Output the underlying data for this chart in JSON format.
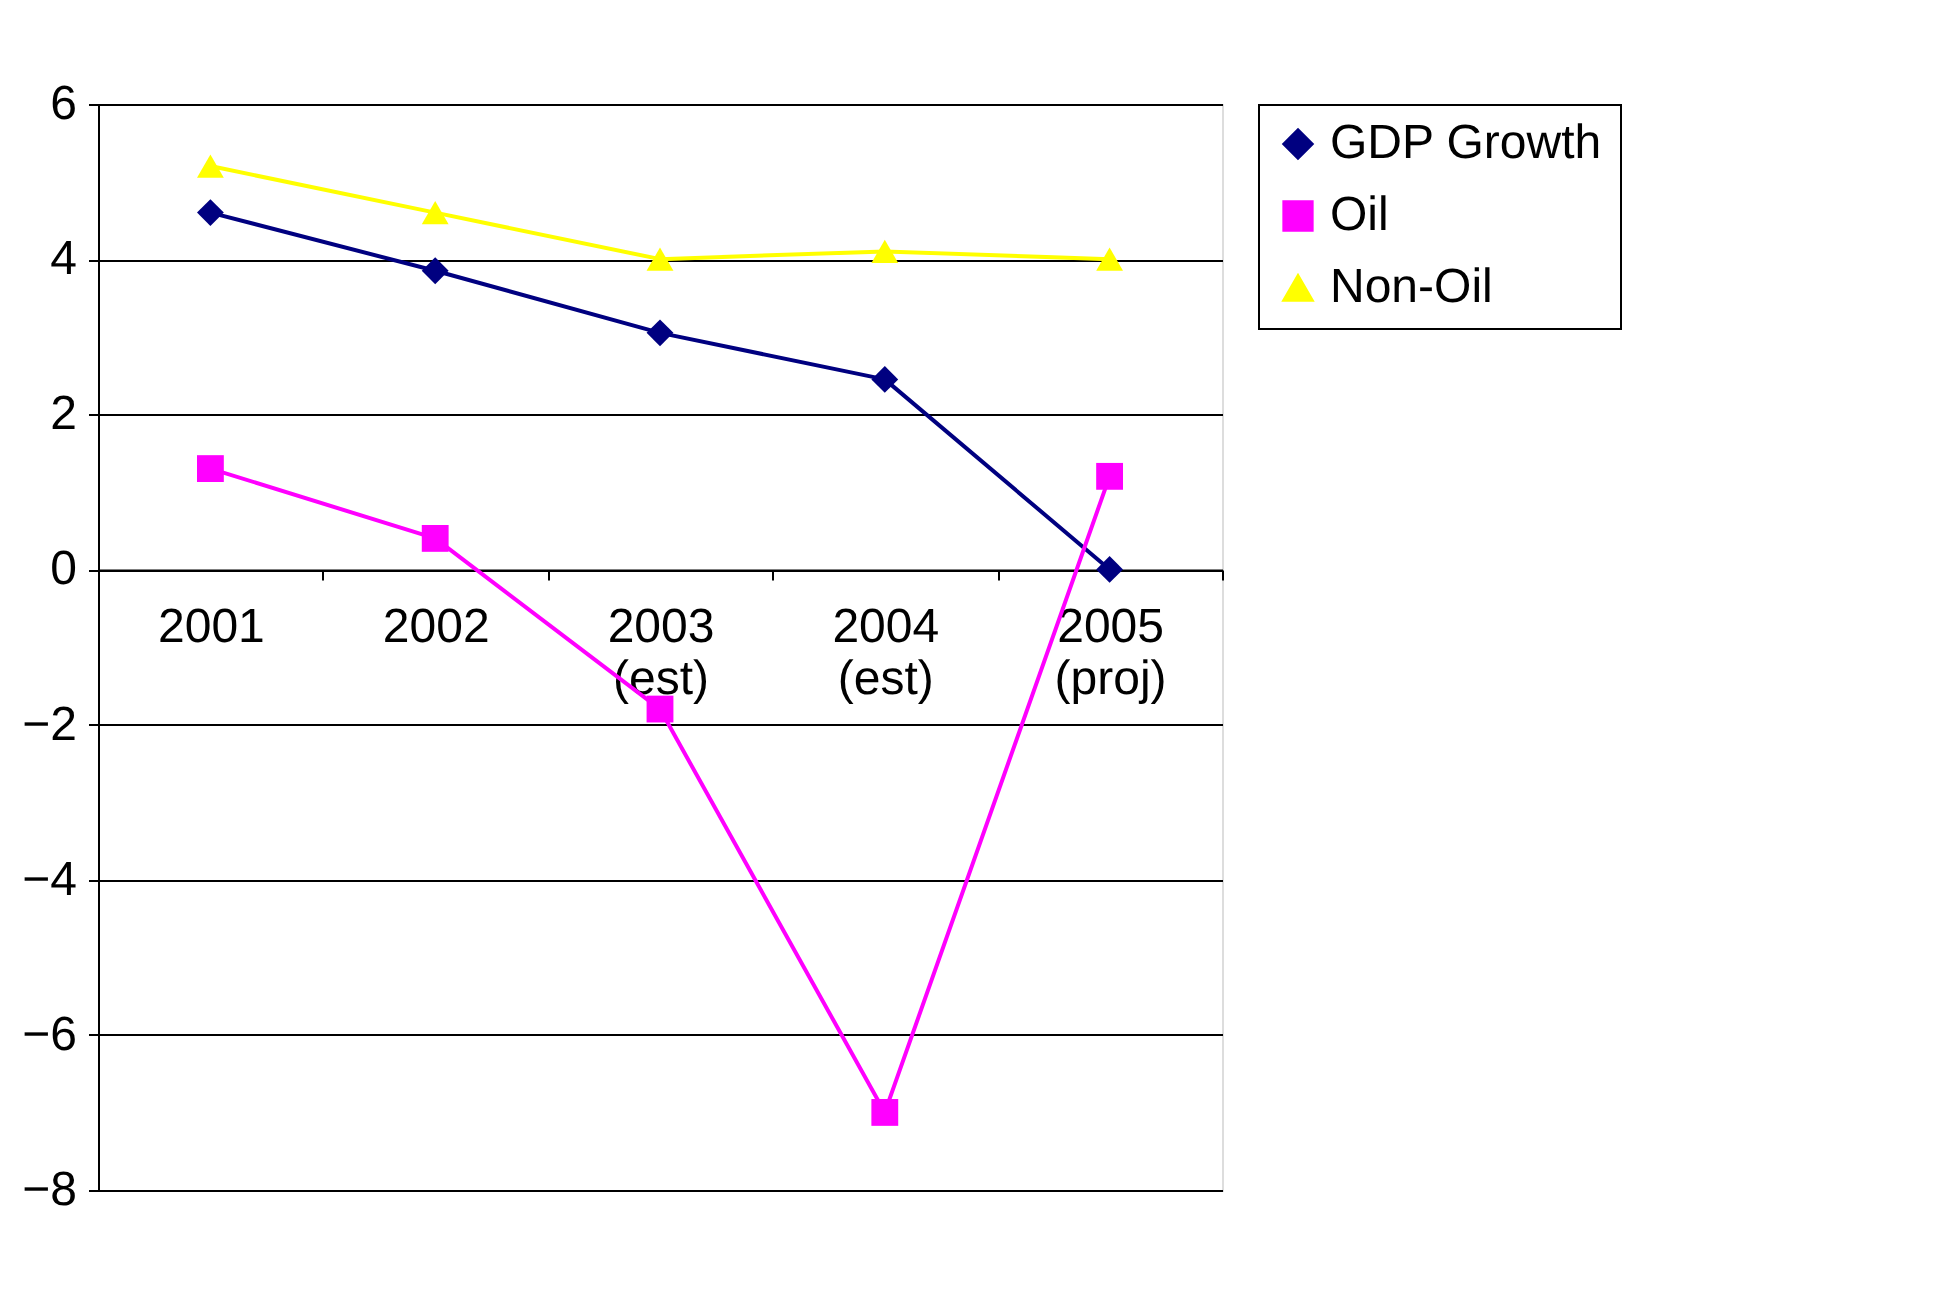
{
  "chart_data": {
    "type": "line",
    "categories": [
      "2001",
      "2002",
      "2003 (est)",
      "2004 (est)",
      "2005 (proj)"
    ],
    "series": [
      {
        "name": "GDP Growth",
        "color": "#000080",
        "marker": "diamond",
        "values": [
          4.6,
          3.85,
          3.05,
          2.45,
          0
        ]
      },
      {
        "name": "Oil",
        "color": "#ff00ff",
        "marker": "square",
        "values": [
          1.3,
          0.4,
          -1.8,
          -7,
          1.2
        ]
      },
      {
        "name": "Non-Oil",
        "color": "#ffff00",
        "marker": "triangle",
        "values": [
          5.2,
          4.6,
          4.0,
          4.1,
          4.0
        ]
      }
    ],
    "ylim": [
      -8,
      6
    ],
    "yticks": [
      -8,
      -6,
      -4,
      -2,
      0,
      2,
      4,
      6
    ],
    "grid": "y",
    "legend": "right",
    "line_style": "solid"
  }
}
